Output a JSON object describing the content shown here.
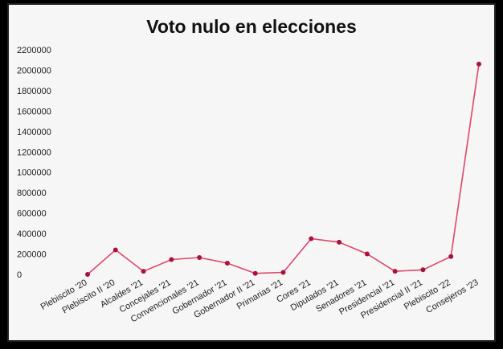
{
  "chart_data": {
    "type": "line",
    "title": "Voto nulo en elecciones",
    "categories": [
      "Plebiscito '20",
      "Plebiscito II '20",
      "Alcaldes '21",
      "Concejales '21",
      "Convencionales '21",
      "Gobernador '21",
      "Gobernador II '21",
      "Primarias '21",
      "Cores '21",
      "Diputados '21",
      "Senadores '21",
      "Presidencial '21",
      "Presidencial II '21",
      "Plebiscito '22",
      "Consejeros '23"
    ],
    "values": [
      0,
      240000,
      30000,
      145000,
      165000,
      110000,
      10000,
      20000,
      350000,
      315000,
      200000,
      30000,
      45000,
      175000,
      2060000
    ],
    "yticks": [
      "0",
      "200000",
      "400000",
      "600000",
      "800000",
      "1000000",
      "1200000",
      "1400000",
      "1600000",
      "1800000",
      "2000000",
      "2200000"
    ],
    "ylim": [
      0,
      2200000
    ],
    "grid": false,
    "line_color": "#e0456a",
    "marker_color": "#a8123c"
  }
}
